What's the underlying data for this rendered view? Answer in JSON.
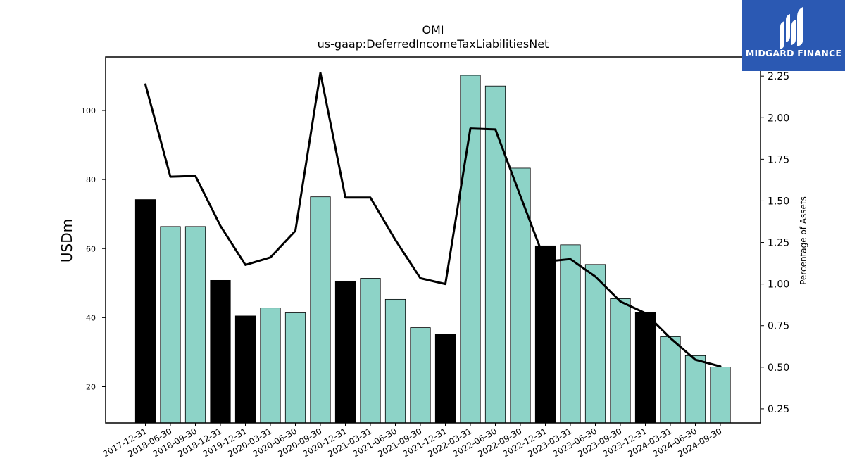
{
  "chart_data": {
    "type": "bar",
    "title": "OMI",
    "subtitle": "us-gaap:DeferredIncomeTaxLiabilitiesNet",
    "ylabel": "USDm",
    "y2label": "Percentage of Assets",
    "ylim": [
      9.5,
      115.5
    ],
    "y2lim": [
      0.165,
      2.365
    ],
    "yticks": [
      20,
      40,
      60,
      80,
      100
    ],
    "y2ticks": [
      "0.25",
      "0.50",
      "0.75",
      "1.00",
      "1.25",
      "1.50",
      "1.75",
      "2.00",
      "2.25"
    ],
    "categories": [
      "2017-12-31",
      "2018-06-30",
      "2018-09-30",
      "2018-12-31",
      "2019-12-31",
      "2020-03-31",
      "2020-06-30",
      "2020-09-30",
      "2020-12-31",
      "2021-03-31",
      "2021-06-30",
      "2021-09-30",
      "2021-12-31",
      "2022-03-31",
      "2022-06-30",
      "2022-09-30",
      "2022-12-31",
      "2023-03-31",
      "2023-06-30",
      "2023-09-30",
      "2023-12-31",
      "2024-03-31",
      "2024-06-30",
      "2024-09-30"
    ],
    "series": [
      {
        "type": "bar",
        "values": [
          74.2,
          66.4,
          66.4,
          50.8,
          40.5,
          42.8,
          41.4,
          75.0,
          50.6,
          51.4,
          45.3,
          37.1,
          35.3,
          110.2,
          107.1,
          83.3,
          60.8,
          61.1,
          55.4,
          45.5,
          41.6,
          34.5,
          29.0,
          25.7
        ],
        "bar_colors": [
          "#000000",
          "#8dd3c7",
          "#8dd3c7",
          "#000000",
          "#000000",
          "#8dd3c7",
          "#8dd3c7",
          "#8dd3c7",
          "#000000",
          "#8dd3c7",
          "#8dd3c7",
          "#8dd3c7",
          "#000000",
          "#8dd3c7",
          "#8dd3c7",
          "#8dd3c7",
          "#000000",
          "#8dd3c7",
          "#8dd3c7",
          "#8dd3c7",
          "#000000",
          "#8dd3c7",
          "#8dd3c7",
          "#8dd3c7"
        ]
      },
      {
        "type": "line",
        "axis": "y2",
        "color": "#000000",
        "values": [
          2.2,
          1.645,
          1.65,
          1.35,
          1.115,
          1.16,
          1.32,
          2.27,
          1.52,
          1.52,
          1.265,
          1.035,
          1.0,
          1.935,
          1.93,
          1.53,
          1.135,
          1.15,
          1.045,
          0.895,
          0.825,
          0.675,
          0.545,
          0.505
        ]
      }
    ],
    "grid": false,
    "legend": "none"
  },
  "logo": {
    "text": "MIDGARD FINANCE",
    "background": "#2b59b3"
  }
}
